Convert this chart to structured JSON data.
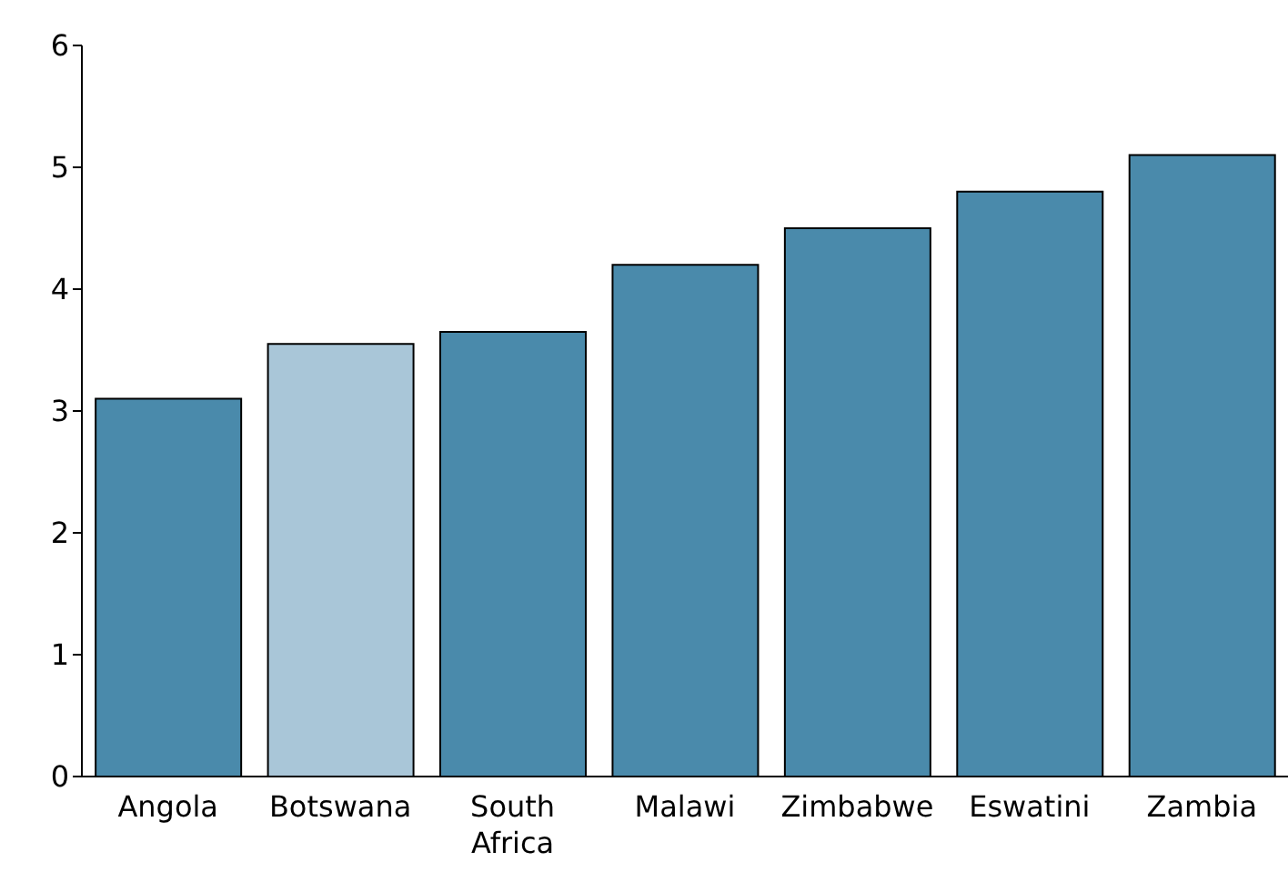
{
  "chart_data": {
    "type": "bar",
    "categories": [
      "Angola",
      "Botswana",
      "South Africa",
      "Malawi",
      "Zimbabwe",
      "Eswatini",
      "Zambia"
    ],
    "values": [
      3.1,
      3.55,
      3.65,
      4.2,
      4.5,
      4.8,
      5.1
    ],
    "colors": [
      "#4a8aab",
      "#a9c6d8",
      "#4a8aab",
      "#4a8aab",
      "#4a8aab",
      "#4a8aab",
      "#4a8aab"
    ],
    "ylim": [
      0,
      6
    ],
    "yticks": [
      0,
      1,
      2,
      3,
      4,
      5,
      6
    ],
    "grid": false,
    "legend": false
  }
}
